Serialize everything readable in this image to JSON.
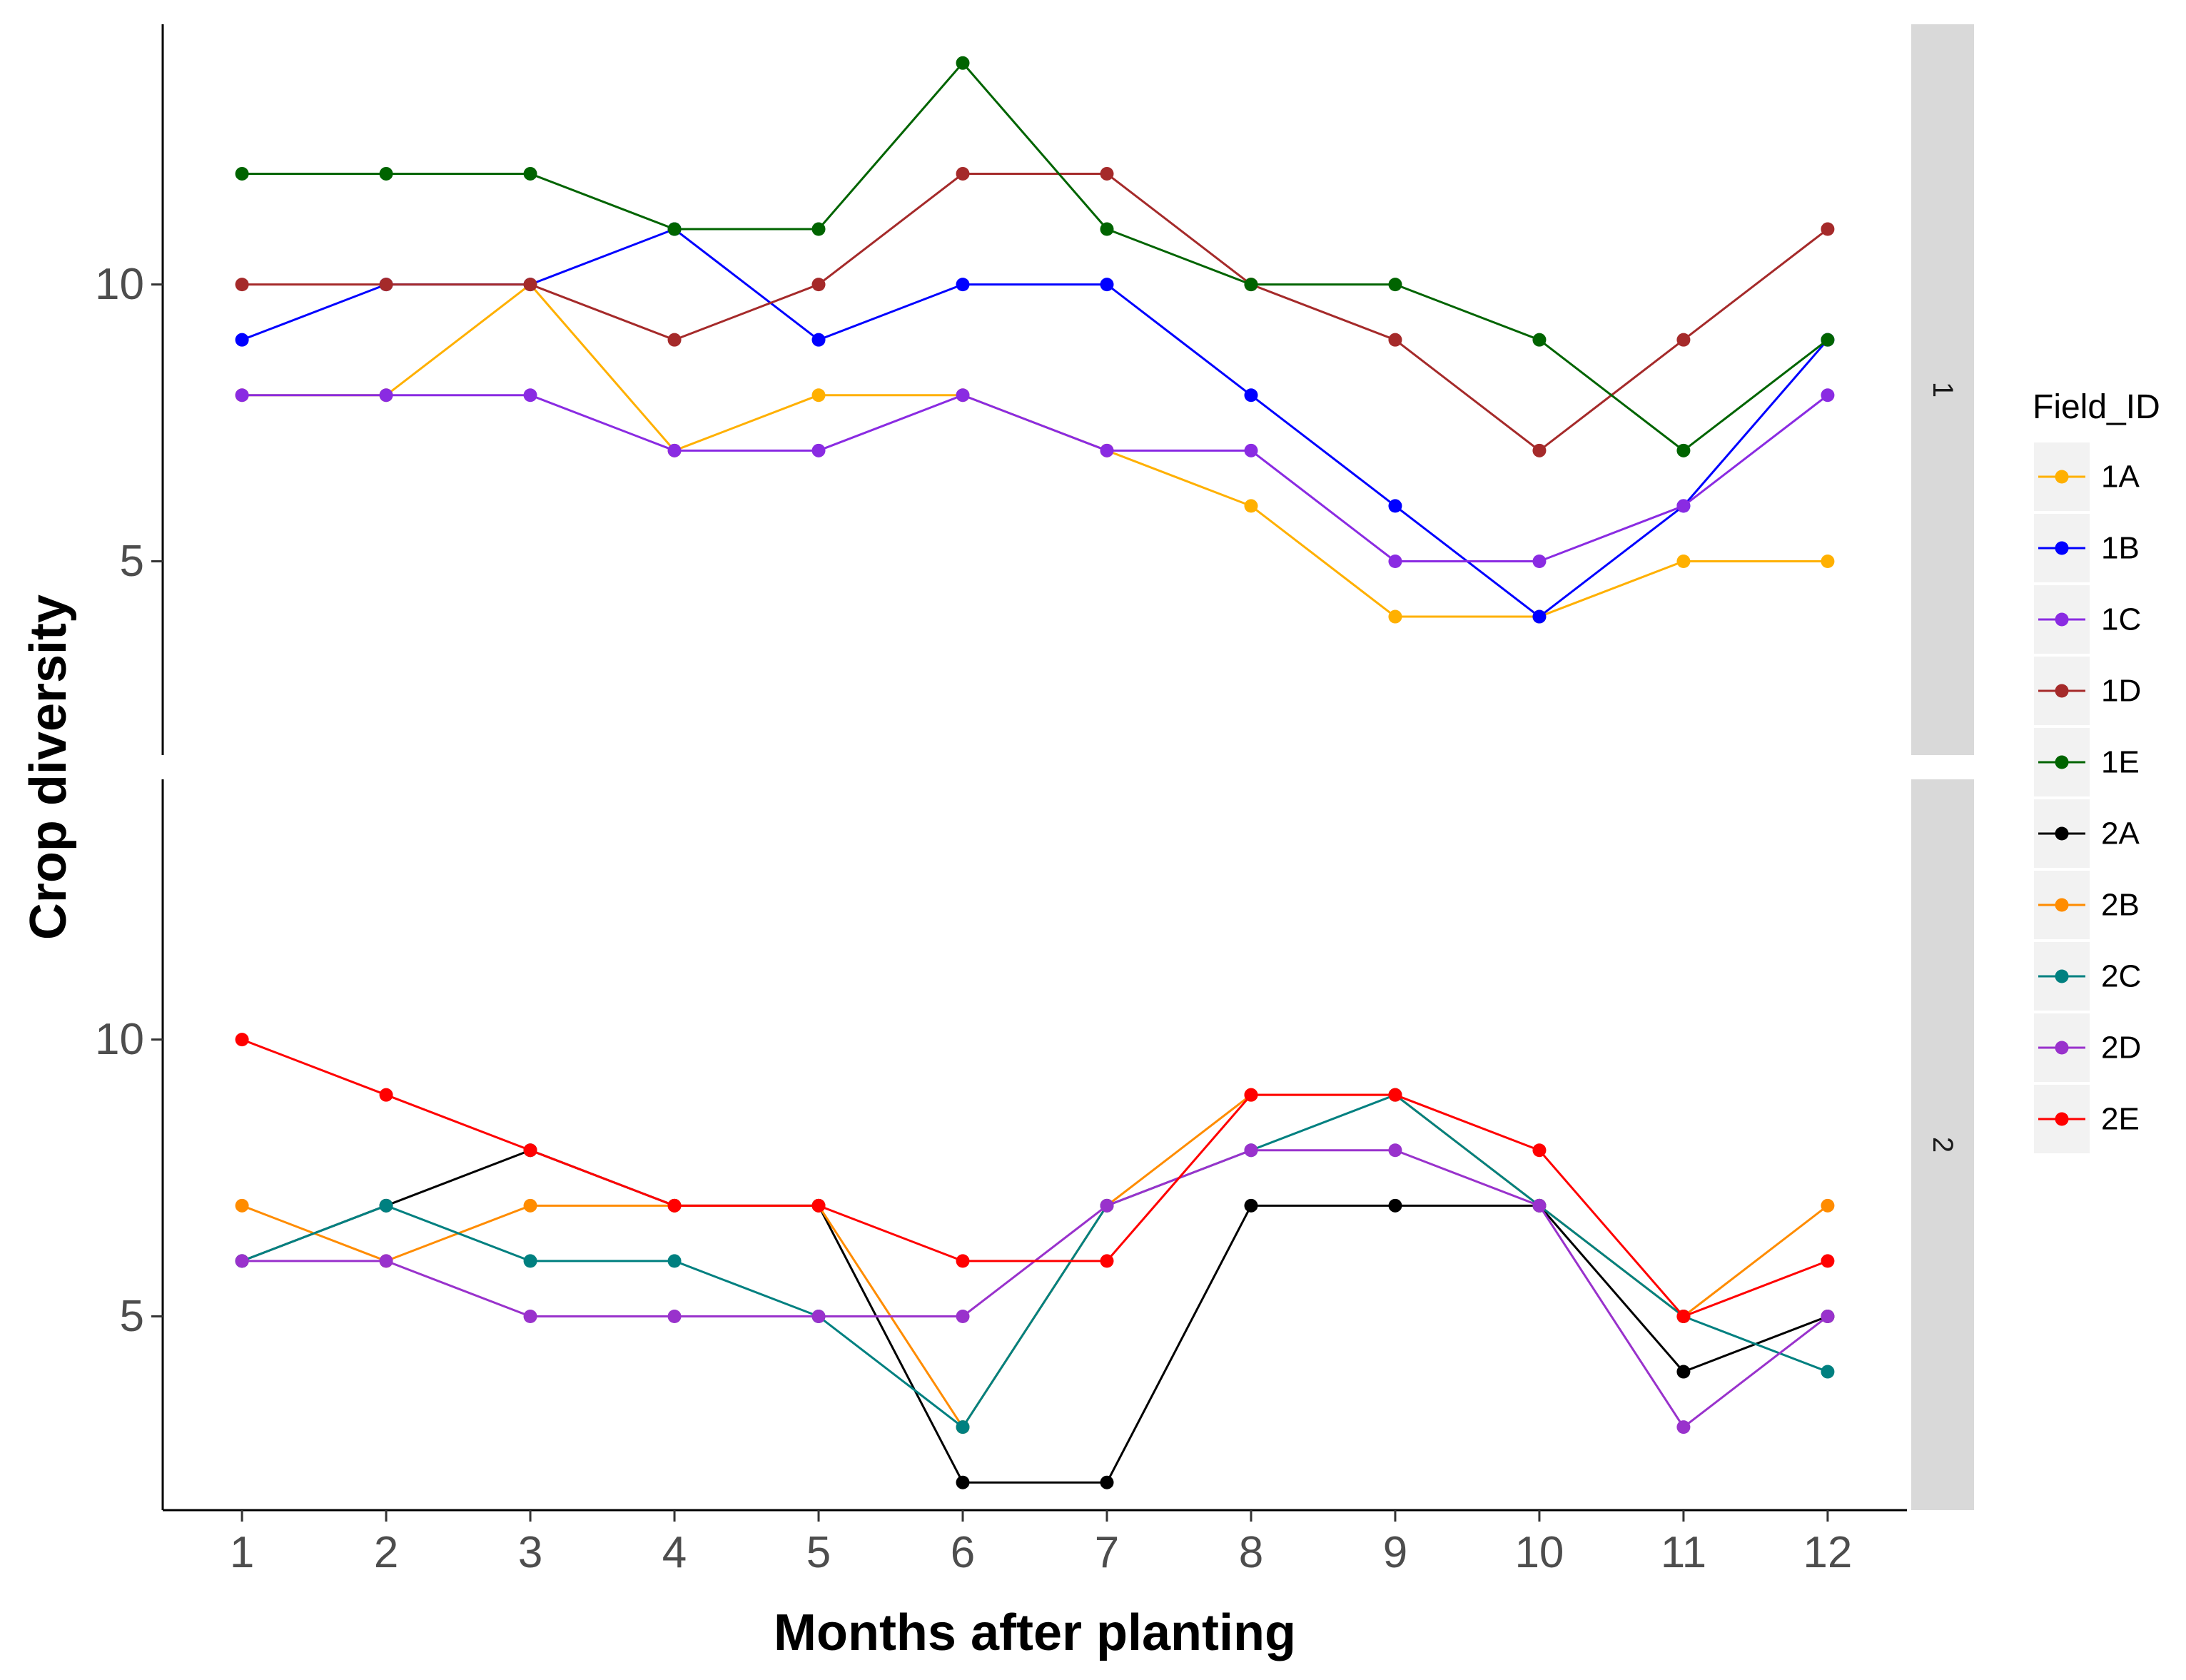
{
  "chart_data": {
    "type": "line",
    "xlabel": "Months after planting",
    "ylabel": "Crop diversity",
    "x": [
      1,
      2,
      3,
      4,
      5,
      6,
      7,
      8,
      9,
      10,
      11,
      12
    ],
    "x_ticks": [
      "1",
      "2",
      "3",
      "4",
      "5",
      "6",
      "7",
      "8",
      "9",
      "10",
      "11",
      "12"
    ],
    "xlim": [
      0.45,
      12.55
    ],
    "ylim": [
      1.5,
      14.7
    ],
    "y_ticks": [
      5,
      10
    ],
    "y_tick_labels": [
      "5",
      "10"
    ],
    "grid": false,
    "legend_position": "right",
    "legend": {
      "title": "Field_ID",
      "entries": [
        {
          "name": "1A",
          "color": "#FFB000"
        },
        {
          "name": "1B",
          "color": "#0000FF"
        },
        {
          "name": "1C",
          "color": "#8A2BE2"
        },
        {
          "name": "1D",
          "color": "#A52A2A"
        },
        {
          "name": "1E",
          "color": "#006400"
        },
        {
          "name": "2A",
          "color": "#000000"
        },
        {
          "name": "2B",
          "color": "#FF8C00"
        },
        {
          "name": "2C",
          "color": "#008080"
        },
        {
          "name": "2D",
          "color": "#9932CC"
        },
        {
          "name": "2E",
          "color": "#FF0000"
        }
      ]
    },
    "panels": [
      {
        "strip_label": "1",
        "series": [
          {
            "name": "1A",
            "color": "#FFB000",
            "values": [
              8,
              8,
              10,
              7,
              8,
              8,
              7,
              6,
              4,
              4,
              5,
              5
            ]
          },
          {
            "name": "1B",
            "color": "#0000FF",
            "values": [
              9,
              10,
              10,
              11,
              9,
              10,
              10,
              8,
              6,
              4,
              6,
              9
            ]
          },
          {
            "name": "1C",
            "color": "#8A2BE2",
            "values": [
              8,
              8,
              8,
              7,
              7,
              8,
              7,
              7,
              5,
              5,
              6,
              8
            ]
          },
          {
            "name": "1D",
            "color": "#A52A2A",
            "values": [
              10,
              10,
              10,
              9,
              10,
              12,
              12,
              10,
              9,
              7,
              9,
              11
            ]
          },
          {
            "name": "1E",
            "color": "#006400",
            "values": [
              12,
              12,
              12,
              11,
              11,
              14,
              11,
              10,
              10,
              9,
              7,
              9
            ]
          }
        ]
      },
      {
        "strip_label": "2",
        "series": [
          {
            "name": "2A",
            "color": "#000000",
            "values": [
              6,
              7,
              8,
              7,
              7,
              2,
              2,
              7,
              7,
              7,
              4,
              5
            ]
          },
          {
            "name": "2B",
            "color": "#FF8C00",
            "values": [
              7,
              6,
              7,
              7,
              7,
              3,
              7,
              9,
              9,
              7,
              5,
              7
            ]
          },
          {
            "name": "2C",
            "color": "#008080",
            "values": [
              6,
              7,
              6,
              6,
              5,
              3,
              7,
              8,
              9,
              7,
              5,
              4
            ]
          },
          {
            "name": "2D",
            "color": "#9932CC",
            "values": [
              6,
              6,
              5,
              5,
              5,
              5,
              7,
              8,
              8,
              7,
              3,
              5
            ]
          },
          {
            "name": "2E",
            "color": "#FF0000",
            "values": [
              10,
              9,
              8,
              7,
              7,
              6,
              6,
              9,
              9,
              8,
              5,
              6
            ]
          }
        ]
      }
    ]
  }
}
